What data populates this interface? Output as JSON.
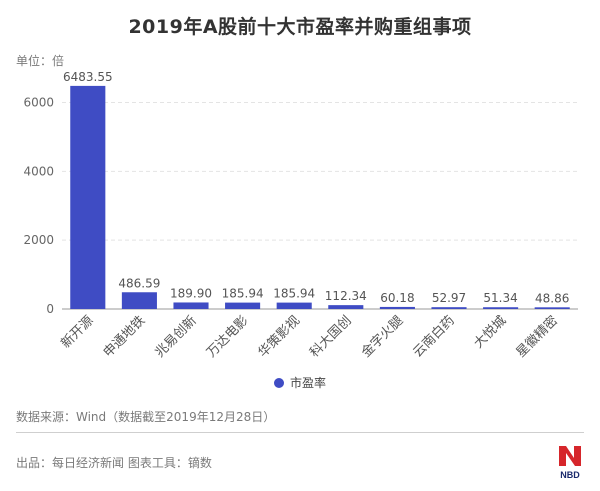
{
  "chart_data": {
    "type": "bar",
    "title": "2019年A股前十大市盈率并购重组事项",
    "unit_label": "单位：倍",
    "categories": [
      "新开源",
      "申通地铁",
      "兆易创新",
      "万达电影",
      "华策影视",
      "科大国创",
      "金字火腿",
      "云南白药",
      "大悦城",
      "星徽精密"
    ],
    "series": [
      {
        "name": "市盈率",
        "values": [
          6483.55,
          486.59,
          189.9,
          185.94,
          185.94,
          112.34,
          60.18,
          52.97,
          51.34,
          48.86
        ]
      }
    ],
    "value_labels": [
      "6483.55",
      "486.59",
      "189.90",
      "185.94",
      "185.94",
      "112.34",
      "60.18",
      "52.97",
      "51.34",
      "48.86"
    ],
    "y_ticks": [
      "0",
      "2000",
      "4000",
      "6000"
    ],
    "ylim": [
      0,
      6800
    ],
    "grid": true,
    "legend_position": "bottom",
    "bar_color": "#3f4cc4"
  },
  "source": "数据来源：Wind（数据截至2019年12月28日）",
  "footer": "出品：每日经济新闻 图表工具：镝数",
  "logo_text": "NBD"
}
